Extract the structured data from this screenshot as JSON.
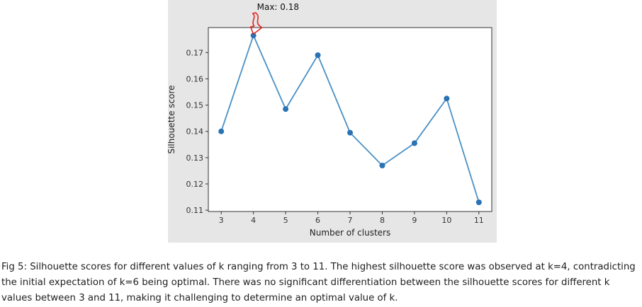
{
  "figure": {
    "caption": "Fig 5: Silhouette scores for different values of k ranging from 3 to 11. The highest silhouette score was observed at k=4, contradicting the initial expectation of k=6 being optimal. There was no significant differentiation between the silhouette scores for different k values between 3 and 11, making it challenging to determine an optimal value of k."
  },
  "chart_data": {
    "type": "line",
    "x": [
      3,
      4,
      5,
      6,
      7,
      8,
      9,
      10,
      11
    ],
    "series": [
      {
        "values": [
          0.14,
          0.1765,
          0.1485,
          0.169,
          0.1395,
          0.127,
          0.1355,
          0.1525,
          0.113
        ]
      }
    ],
    "xlabel": "Number of clusters",
    "ylabel": "Silhouette score",
    "xticks": [
      "3",
      "4",
      "5",
      "6",
      "7",
      "8",
      "9",
      "10",
      "11"
    ],
    "yticks": [
      "0.11",
      "0.12",
      "0.13",
      "0.14",
      "0.15",
      "0.16",
      "0.17"
    ],
    "xlim": [
      2.6,
      11.4
    ],
    "ylim": [
      0.1095,
      0.1795
    ],
    "grid": false,
    "annotation": {
      "text": "Max: 0.18",
      "x": 4,
      "y": 0.1765
    },
    "colors": {
      "line": "#4a90c4",
      "marker": "#2b72b4",
      "annotation_arrow": "#e8231e"
    }
  }
}
